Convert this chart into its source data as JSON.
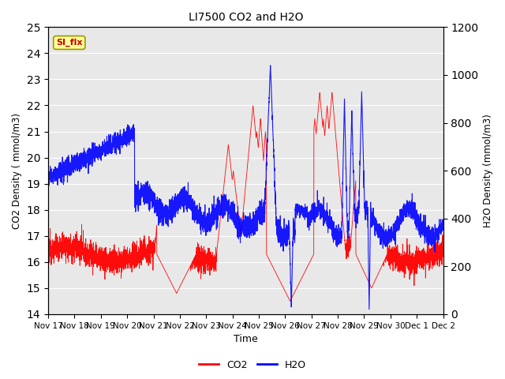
{
  "title": "LI7500 CO2 and H2O",
  "xlabel": "Time",
  "ylabel_left": "CO2 Density ( mmol/m3)",
  "ylabel_right": "H2O Density (mmol/m3)",
  "ylim_left": [
    14.0,
    25.0
  ],
  "ylim_right": [
    0,
    1200
  ],
  "yticks_left": [
    14.0,
    15.0,
    16.0,
    17.0,
    18.0,
    19.0,
    20.0,
    21.0,
    22.0,
    23.0,
    24.0,
    25.0
  ],
  "yticks_right": [
    0,
    200,
    400,
    600,
    800,
    1000,
    1200
  ],
  "xtick_labels": [
    "Nov 17",
    "Nov 18",
    "Nov 19",
    "Nov 20",
    "Nov 21",
    "Nov 22",
    "Nov 23",
    "Nov 24",
    "Nov 25",
    "Nov 26",
    "Nov 27",
    "Nov 28",
    "Nov 29",
    "Nov 30",
    "Dec 1",
    "Dec 2"
  ],
  "co2_color": "#FF0000",
  "h2o_color": "#0000FF",
  "annotation_text": "SI_flx",
  "annotation_bgcolor": "#ccaa00",
  "annotation_edgecolor": "#886600",
  "annotation_textcolor": "#cc0000",
  "background_color": "#ffffff",
  "plot_bgcolor": "#e8e8e8",
  "grid_color": "#ffffff",
  "legend_co2": "CO2",
  "legend_h2o": "H2O",
  "figwidth": 6.4,
  "figheight": 4.8,
  "dpi": 100
}
